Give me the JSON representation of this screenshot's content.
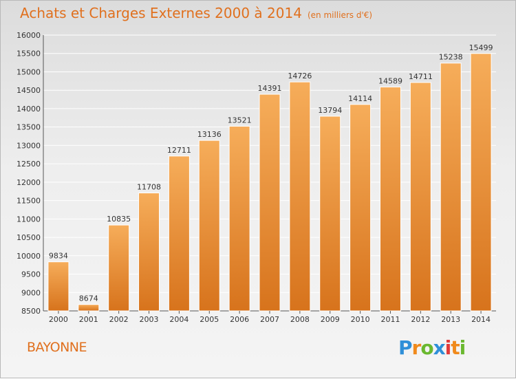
{
  "title": "Achats et Charges Externes 2000 à 2014",
  "subtitle": "(en milliers d'€)",
  "city": "BAYONNE",
  "logo": {
    "letters": [
      "P",
      "r",
      "o",
      "x",
      "i",
      "t",
      "i"
    ],
    "colors": [
      "#2f8fd8",
      "#f08a1c",
      "#6ab82f",
      "#2f8fd8",
      "#e23a3a",
      "#f08a1c",
      "#6ab82f"
    ]
  },
  "colors": {
    "bar_top": "#f6ad5a",
    "bar_bottom": "#d7731c",
    "accent": "#e0701e",
    "grid": "#ffffff"
  },
  "chart_data": {
    "type": "bar",
    "title": "Achats et Charges Externes 2000 à 2014",
    "subtitle": "(en milliers d'€)",
    "categories": [
      "2000",
      "2001",
      "2002",
      "2003",
      "2004",
      "2005",
      "2006",
      "2007",
      "2008",
      "2009",
      "2010",
      "2011",
      "2012",
      "2013",
      "2014"
    ],
    "values": [
      9834,
      8674,
      10835,
      11708,
      12711,
      13136,
      13521,
      14391,
      14726,
      13794,
      14114,
      14589,
      14711,
      15238,
      15499
    ],
    "ylim": [
      8500,
      16000
    ],
    "yticks": [
      8500,
      9000,
      9500,
      10000,
      10500,
      11000,
      11500,
      12000,
      12500,
      13000,
      13500,
      14000,
      14500,
      15000,
      15500,
      16000
    ],
    "grid": true,
    "xlabel": "",
    "ylabel": ""
  }
}
